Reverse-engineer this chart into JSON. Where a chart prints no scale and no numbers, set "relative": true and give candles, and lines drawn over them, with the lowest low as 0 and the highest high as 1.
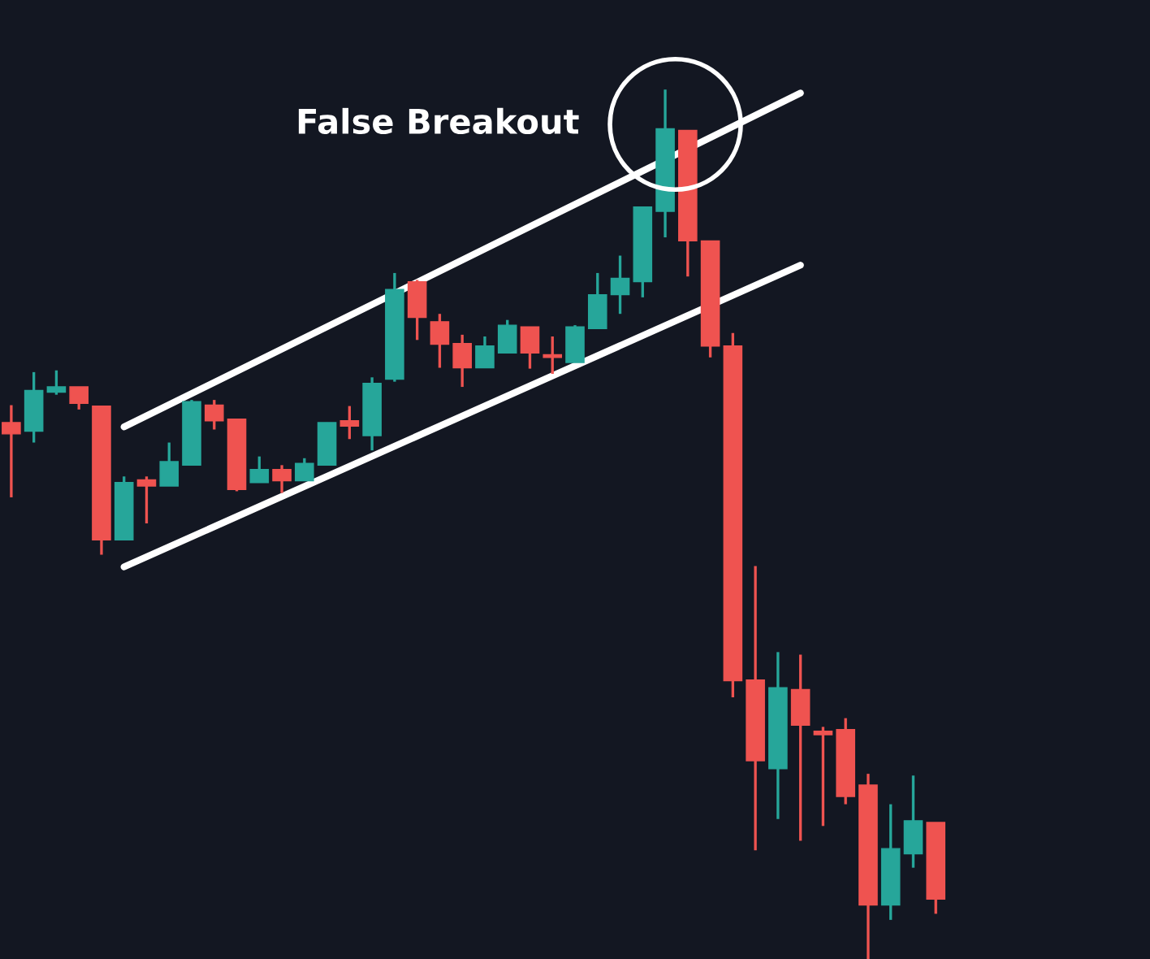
{
  "chart_data": {
    "type": "candlestick",
    "relative": true,
    "annotations": [
      "False Breakout"
    ],
    "categories": [
      null,
      null,
      null,
      null,
      null,
      null,
      null,
      null,
      null,
      null,
      null,
      null,
      null,
      null,
      null,
      null,
      null,
      null,
      null,
      null,
      null,
      null,
      null,
      null,
      null,
      null,
      null,
      null,
      null,
      null,
      null,
      null,
      null,
      null,
      null,
      null,
      null,
      null,
      null,
      null,
      null,
      null
    ],
    "ohlc": [
      [
        0.617,
        0.637,
        0.531,
        0.604
      ],
      [
        0.607,
        0.675,
        0.594,
        0.654
      ],
      [
        0.652,
        0.677,
        0.649,
        0.658
      ],
      [
        0.658,
        0.658,
        0.632,
        0.639
      ],
      [
        0.636,
        0.636,
        0.465,
        0.482
      ],
      [
        0.482,
        0.555,
        0.482,
        0.548
      ],
      [
        0.551,
        0.555,
        0.501,
        0.544
      ],
      [
        0.544,
        0.594,
        0.544,
        0.572
      ],
      [
        0.568,
        0.643,
        0.568,
        0.641
      ],
      [
        0.637,
        0.643,
        0.609,
        0.619
      ],
      [
        0.621,
        0.621,
        0.538,
        0.54
      ],
      [
        0.548,
        0.578,
        0.548,
        0.563
      ],
      [
        0.563,
        0.568,
        0.536,
        0.55
      ],
      [
        0.55,
        0.576,
        0.55,
        0.57
      ],
      [
        0.568,
        0.617,
        0.568,
        0.617
      ],
      [
        0.619,
        0.636,
        0.598,
        0.613
      ],
      [
        0.602,
        0.669,
        0.585,
        0.662
      ],
      [
        0.667,
        0.789,
        0.664,
        0.77
      ],
      [
        0.779,
        0.781,
        0.712,
        0.738
      ],
      [
        0.733,
        0.742,
        0.68,
        0.707
      ],
      [
        0.708,
        0.718,
        0.658,
        0.68
      ],
      [
        0.68,
        0.716,
        0.68,
        0.705
      ],
      [
        0.697,
        0.735,
        0.697,
        0.729
      ],
      [
        0.727,
        0.727,
        0.679,
        0.697
      ],
      [
        0.695,
        0.716,
        0.673,
        0.692
      ],
      [
        0.686,
        0.729,
        0.686,
        0.727
      ],
      [
        0.725,
        0.789,
        0.725,
        0.764
      ],
      [
        0.764,
        0.809,
        0.742,
        0.783
      ],
      [
        0.779,
        0.865,
        0.761,
        0.865
      ],
      [
        0.86,
        1.0,
        0.83,
        0.955
      ],
      [
        0.953,
        0.953,
        0.785,
        0.826
      ],
      [
        0.826,
        0.826,
        0.692,
        0.705
      ],
      [
        0.705,
        0.72,
        0.301,
        0.32
      ],
      [
        0.321,
        0.452,
        0.125,
        0.228
      ],
      [
        0.219,
        0.353,
        0.161,
        0.312
      ],
      [
        0.31,
        0.35,
        0.136,
        0.269
      ],
      [
        0.262,
        0.267,
        0.153,
        0.258
      ],
      [
        0.264,
        0.277,
        0.178,
        0.187
      ],
      [
        0.2,
        0.213,
        0.0,
        0.062
      ],
      [
        0.062,
        0.178,
        0.045,
        0.127
      ],
      [
        0.121,
        0.211,
        0.105,
        0.159
      ],
      [
        0.157,
        0.157,
        0.052,
        0.069
      ]
    ],
    "colors": [
      "#ef5350",
      "#26a69a",
      "#26a69a",
      "#ef5350",
      "#ef5350",
      "#26a69a",
      "#ef5350",
      "#26a69a",
      "#26a69a",
      "#ef5350",
      "#ef5350",
      "#26a69a",
      "#ef5350",
      "#26a69a",
      "#26a69a",
      "#ef5350",
      "#26a69a",
      "#26a69a",
      "#ef5350",
      "#ef5350",
      "#ef5350",
      "#26a69a",
      "#26a69a",
      "#ef5350",
      "#ef5350",
      "#26a69a",
      "#26a69a",
      "#26a69a",
      "#26a69a",
      "#26a69a",
      "#ef5350",
      "#ef5350",
      "#ef5350",
      "#ef5350",
      "#26a69a",
      "#ef5350",
      "#ef5350",
      "#ef5350",
      "#ef5350",
      "#26a69a",
      "#26a69a",
      "#ef5350"
    ],
    "series": [
      {
        "type": "line",
        "color": "#ffffff",
        "values": [
          null,
          null,
          null,
          null,
          null,
          0.612,
          null,
          null,
          null,
          null,
          null,
          null,
          null,
          null,
          null,
          null,
          null,
          null,
          null,
          null,
          null,
          null,
          null,
          null,
          null,
          null,
          null,
          null,
          null,
          null,
          null,
          null,
          null,
          null,
          null,
          0.996,
          null,
          null,
          null,
          null,
          null,
          null
        ]
      },
      {
        "type": "line",
        "color": "#ffffff",
        "values": [
          null,
          null,
          null,
          null,
          null,
          0.451,
          null,
          null,
          null,
          null,
          null,
          null,
          null,
          null,
          null,
          null,
          null,
          null,
          null,
          null,
          null,
          null,
          null,
          null,
          null,
          null,
          null,
          null,
          null,
          null,
          null,
          null,
          null,
          null,
          null,
          0.798,
          null,
          null,
          null,
          null,
          null,
          null
        ]
      }
    ]
  }
}
